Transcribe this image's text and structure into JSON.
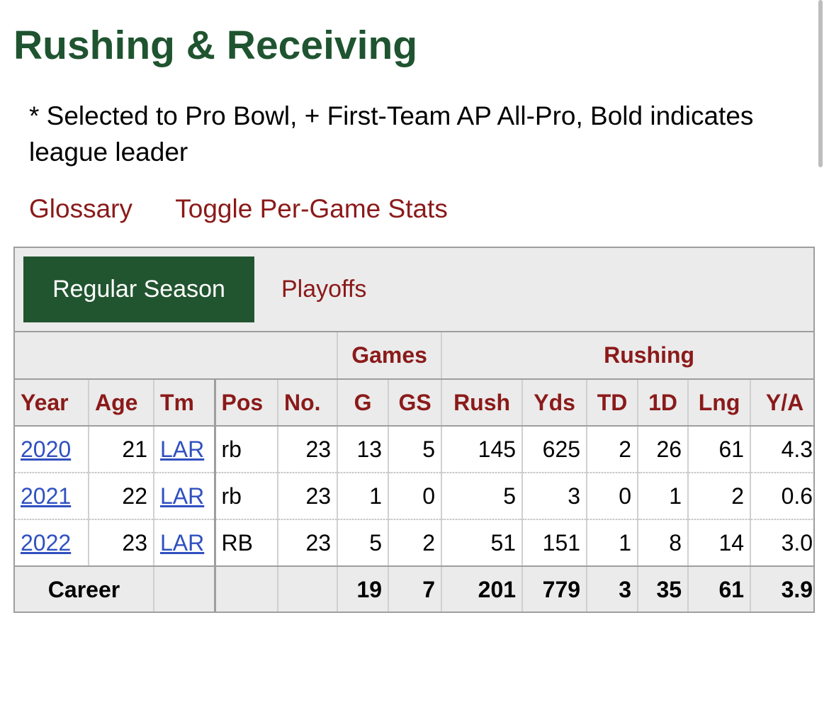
{
  "page": {
    "title": "Rushing & Receiving",
    "note": "* Selected to Pro Bowl, + First-Team AP All-Pro, Bold indicates league leader",
    "links": {
      "glossary": "Glossary",
      "toggle_per_game": "Toggle Per-Game Stats"
    }
  },
  "tabs": {
    "active": "Regular Season",
    "other": "Playoffs"
  },
  "table": {
    "groups": {
      "games": "Games",
      "rushing": "Rushing"
    },
    "columns": [
      "Year",
      "Age",
      "Tm",
      "Pos",
      "No.",
      "G",
      "GS",
      "Rush",
      "Yds",
      "TD",
      "1D",
      "Lng",
      "Y/A"
    ],
    "rows": [
      {
        "year": "2020",
        "age": "21",
        "tm": "LAR",
        "pos": "rb",
        "no": "23",
        "g": "13",
        "gs": "5",
        "rush": "145",
        "yds": "625",
        "td": "2",
        "fd": "26",
        "lng": "61",
        "ya": "4.3"
      },
      {
        "year": "2021",
        "age": "22",
        "tm": "LAR",
        "pos": "rb",
        "no": "23",
        "g": "1",
        "gs": "0",
        "rush": "5",
        "yds": "3",
        "td": "0",
        "fd": "1",
        "lng": "2",
        "ya": "0.6"
      },
      {
        "year": "2022",
        "age": "23",
        "tm": "LAR",
        "pos": "RB",
        "no": "23",
        "g": "5",
        "gs": "2",
        "rush": "51",
        "yds": "151",
        "td": "1",
        "fd": "8",
        "lng": "14",
        "ya": "3.0"
      }
    ],
    "career": {
      "label": "Career",
      "g": "19",
      "gs": "7",
      "rush": "201",
      "yds": "779",
      "td": "3",
      "fd": "35",
      "lng": "61",
      "ya": "3.9"
    }
  },
  "colors": {
    "title_green": "#1f5430",
    "tab_green": "#215530",
    "link_red": "#8b1a1a",
    "link_blue": "#3050c0",
    "panel_gray": "#ebebeb"
  }
}
